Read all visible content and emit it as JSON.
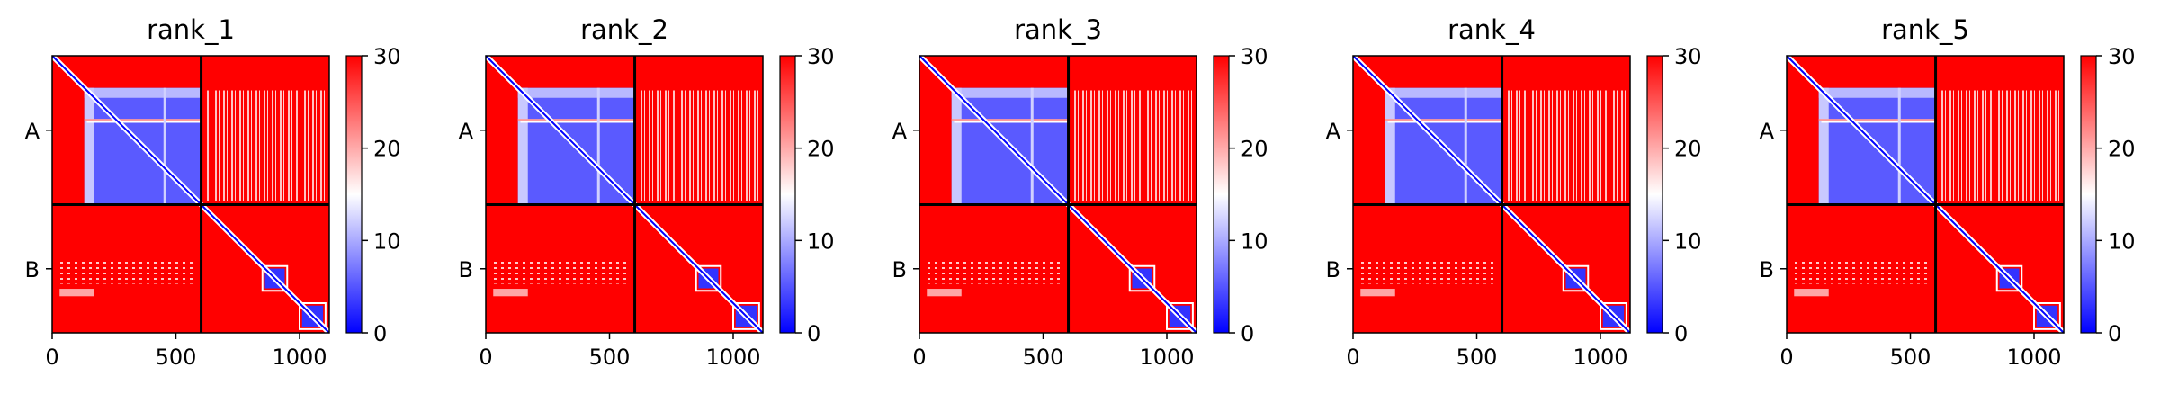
{
  "chart_data": {
    "type": "heatmap",
    "colormap": [
      "#0000ff",
      "#ffffff",
      "#ff0000"
    ],
    "colorbar": {
      "range": [
        0,
        30
      ],
      "ticks": [
        0,
        10,
        20,
        30
      ]
    },
    "x_ticks": [
      0,
      500,
      1000
    ],
    "xlim": [
      0,
      1120
    ],
    "chain_boundary": 602,
    "chains": [
      "A",
      "B"
    ],
    "panels": [
      {
        "title": "rank_1"
      },
      {
        "title": "rank_2"
      },
      {
        "title": "rank_3"
      },
      {
        "title": "rank_4"
      },
      {
        "title": "rank_5"
      }
    ]
  }
}
